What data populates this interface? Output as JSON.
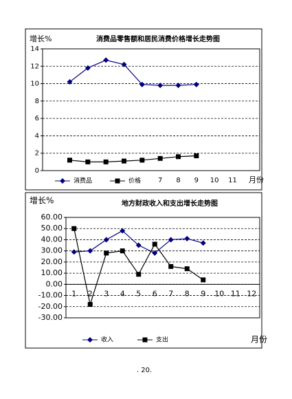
{
  "charts": [
    {
      "chart_data": {
        "type": "line",
        "title": "消费品零售额和居民消费价格增长走势图",
        "ylabel": "增长%",
        "xlabel": "月份",
        "categories": [
          null,
          null,
          null,
          null,
          null,
          null,
          "7",
          "8",
          "9",
          "10",
          "11",
          null
        ],
        "series": [
          {
            "name": "消费品",
            "color": "#000080",
            "marker": "diamond",
            "values": [
              null,
              10.2,
              11.8,
              12.7,
              12.2,
              9.9,
              9.8,
              9.8,
              9.9,
              null,
              null,
              null
            ]
          },
          {
            "name": "价格",
            "color": "#000000",
            "marker": "square",
            "values": [
              null,
              1.2,
              1.0,
              1.0,
              1.1,
              1.2,
              1.4,
              1.6,
              1.7,
              null,
              null,
              null
            ]
          }
        ],
        "ylim": [
          0,
          14
        ],
        "yticks": [
          0,
          2,
          4,
          6,
          8,
          10,
          12,
          14
        ],
        "grid": true
      }
    },
    {
      "chart_data": {
        "type": "line",
        "title": "地方财政收入和支出增长走势图",
        "ylabel": "增长%",
        "xlabel": "月份",
        "categories": [
          "1",
          "2",
          "3",
          "4",
          "5",
          "6",
          "7",
          "8",
          "9",
          "10",
          "11",
          "12"
        ],
        "series": [
          {
            "name": "收入",
            "color": "#000080",
            "marker": "diamond",
            "values": [
              29,
              30,
              40,
              48,
              35,
              28,
              40,
              41,
              37,
              null,
              null,
              null
            ]
          },
          {
            "name": "支出",
            "color": "#000000",
            "marker": "square",
            "values": [
              50,
              -18,
              28,
              30,
              9,
              36,
              16,
              14,
              4,
              null,
              null,
              null
            ]
          }
        ],
        "ylim": [
          -30,
          60
        ],
        "yticks": [
          {
            "value": -30,
            "label": "-30.00"
          },
          {
            "value": -20,
            "label": "-20.00"
          },
          {
            "value": -10,
            "label": "-10.00"
          },
          {
            "value": 0,
            "label": "0.00"
          },
          {
            "value": 10,
            "label": "10.00"
          },
          {
            "value": 20,
            "label": "20.00"
          },
          {
            "value": 30,
            "label": "30.00"
          },
          {
            "value": 40,
            "label": "40.00"
          },
          {
            "value": 50,
            "label": "50.00"
          },
          {
            "value": 60,
            "label": "60.00"
          }
        ],
        "grid": true
      }
    }
  ],
  "page_number": ". 20."
}
